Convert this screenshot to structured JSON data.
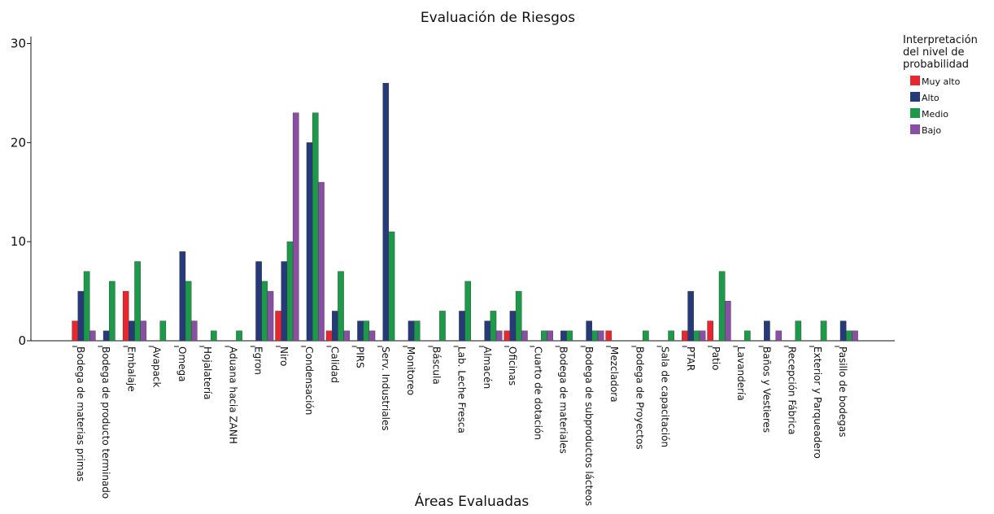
{
  "chart_data": {
    "type": "bar",
    "title": "Evaluación de Riesgos",
    "x_label": "Áreas Evaluadas",
    "legend_title": [
      "Interpretación",
      "del nivel de",
      "probabilidad"
    ],
    "legend": "right",
    "categories": [
      "Bodega de materias primas",
      "Bodega de producto terminado",
      "Embalaje",
      "Avapack",
      "Omega",
      "Hojalatería",
      "Aduana hacia ZANH",
      "Egron",
      "Niro",
      "Condensación",
      "Calidad",
      "PIRS",
      "Serv. Industriales",
      "Monitoreo",
      "Báscula",
      "Lab. Leche Fresca",
      "Almacén",
      "Oficinas",
      "Cuarto de dotación",
      "Bodega de materiales",
      "Bodega de subproductos lácteos",
      "Mezcladora",
      "Bodega de Proyectos",
      "Sala de capacitación",
      "PTAR",
      "Patio",
      "Lavandería",
      "Baños y Vestieres",
      "Recepción Fábrica",
      "Exterior y Parqueadero",
      "Pasillo de bodegas"
    ],
    "series": [
      {
        "name": "Muy alto",
        "color": "#e8262f",
        "values": [
          2,
          null,
          5,
          null,
          null,
          null,
          null,
          null,
          3,
          null,
          1,
          null,
          null,
          null,
          null,
          null,
          null,
          1,
          null,
          null,
          null,
          1,
          null,
          null,
          1,
          2,
          null,
          null,
          null,
          null,
          null
        ]
      },
      {
        "name": "Alto",
        "color": "#263a7a",
        "values": [
          5,
          1,
          2,
          null,
          9,
          null,
          null,
          8,
          8,
          20,
          3,
          2,
          26,
          2,
          null,
          3,
          2,
          3,
          null,
          1,
          2,
          null,
          null,
          null,
          5,
          null,
          null,
          2,
          null,
          null,
          2
        ]
      },
      {
        "name": "Medio",
        "color": "#1c9a4a",
        "values": [
          7,
          6,
          8,
          2,
          6,
          1,
          1,
          6,
          10,
          23,
          7,
          2,
          11,
          2,
          3,
          6,
          3,
          5,
          1,
          1,
          1,
          null,
          1,
          1,
          1,
          7,
          1,
          null,
          2,
          2,
          1
        ]
      },
      {
        "name": "Bajo",
        "color": "#8a4fa3",
        "values": [
          1,
          null,
          2,
          null,
          2,
          null,
          null,
          5,
          23,
          16,
          1,
          1,
          null,
          null,
          null,
          null,
          1,
          1,
          1,
          null,
          1,
          null,
          null,
          null,
          1,
          4,
          null,
          1,
          null,
          null,
          1
        ]
      }
    ],
    "ylim": [
      0,
      30.7
    ],
    "yticks": [
      0,
      10,
      20,
      30
    ]
  }
}
